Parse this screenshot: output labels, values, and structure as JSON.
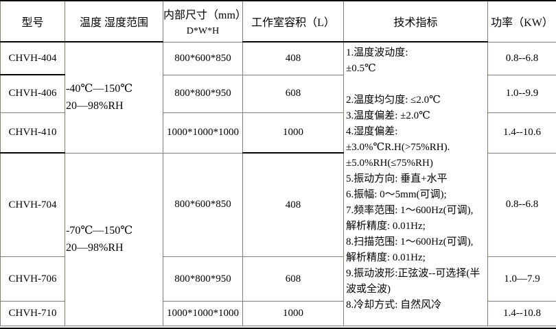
{
  "table": {
    "headers": [
      {
        "label": "型号"
      },
      {
        "label": "温度 湿度范围"
      },
      {
        "label": "内部尺寸（mm）",
        "sub": "D*W*H"
      },
      {
        "label": "工作室容积（L）"
      },
      {
        "label": "技术指标"
      },
      {
        "label": "功率（KW）"
      }
    ],
    "temp_groups": [
      {
        "line1": "-40℃—150℃",
        "line2": "20—98%RH"
      },
      {
        "line1": "-70℃—150℃",
        "line2": "20—98%RH"
      }
    ],
    "rows": [
      {
        "model": "CHVH-404",
        "dimensions": "800*600*850",
        "volume": "408",
        "power": "0.8--6.8"
      },
      {
        "model": "CHVH-406",
        "dimensions": "800*800*950",
        "volume": "608",
        "power": "1.0--9.9"
      },
      {
        "model": "CHVH-410",
        "dimensions": "1000*1000*1000",
        "volume": "1000",
        "power": "1.4--10.6"
      },
      {
        "model": "CHVH-704",
        "dimensions": "800*600*850",
        "volume": "408",
        "power": "0.8--6.8"
      },
      {
        "model": "CHVH-706",
        "dimensions": "800*800*950",
        "volume": "608",
        "power": "1.0—7.9"
      },
      {
        "model": "CHVH-710",
        "dimensions": "1000*1000*1000",
        "volume": "1000",
        "power": "1.4--10.8"
      }
    ],
    "tech_spec_lines": [
      "1.温度波动度:",
      "±0.5℃",
      "",
      "2.温度均匀度:  ≤2.0℃",
      "3.温度偏差: ±2.0℃",
      "4.湿度偏差:",
      "±3.0%℃R.H(>75%RH).",
      "±5.0%RH(≤75%RH)",
      "5.振动方向: 垂直+水平",
      "6.振幅: 0～5mm(可调);",
      "7.频率范围: 1～600Hz(可调),",
      "解析精度: 0.01Hz;",
      "8.扫描范围: 1～600Hz(可调),",
      "解析精度: 0.01Hz;",
      "9.振动波形:正弦波--可选择(半",
      "波或全波)",
      "8.冷却方式: 自然风冷"
    ]
  }
}
